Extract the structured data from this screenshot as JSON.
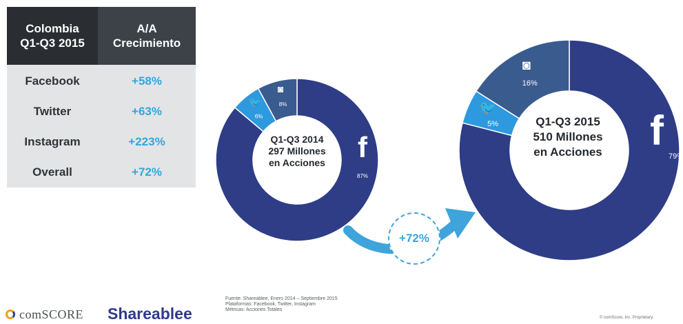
{
  "table": {
    "header": {
      "col1": [
        "Colombia",
        "Q1-Q3 2015"
      ],
      "col2": [
        "A/A",
        "Crecimiento"
      ]
    },
    "rows": [
      {
        "platform": "Facebook",
        "growth": "+58%"
      },
      {
        "platform": "Twitter",
        "growth": "+63%"
      },
      {
        "platform": "Instagram",
        "growth": "+223%"
      },
      {
        "platform": "Overall",
        "growth": "+72%"
      }
    ]
  },
  "chart_data": [
    {
      "type": "pie",
      "center_label": [
        "Q1-Q3 2014",
        "297 Millones",
        "en Acciones"
      ],
      "categories": [
        "Facebook",
        "Twitter",
        "Instagram"
      ],
      "values": [
        87,
        6,
        8
      ],
      "labels": [
        "87%",
        "6%",
        "8%"
      ],
      "colors": [
        "#2e3d86",
        "#2d99de",
        "#3a5b8e"
      ]
    },
    {
      "type": "pie",
      "center_label": [
        "Q1-Q3 2015",
        "510 Millones",
        "en Acciones"
      ],
      "categories": [
        "Facebook",
        "Twitter",
        "Instagram"
      ],
      "values": [
        79,
        5,
        16
      ],
      "labels": [
        "79%",
        "5%",
        "16%"
      ],
      "colors": [
        "#2e3d86",
        "#2d99de",
        "#3a5b8e"
      ]
    }
  ],
  "growth_badge": "+72%",
  "footer": {
    "comscore": "comSCORE",
    "shareablee": "Shareablee",
    "source_lines": [
      "Fuente: Shareablee, Enero 2014 – Septiembre 2015",
      "Plataformas: Facebook, Twitter, Instagram",
      "Métricas: Acciones Totales"
    ],
    "copyright": "© comScore, Inc. Proprietary."
  }
}
